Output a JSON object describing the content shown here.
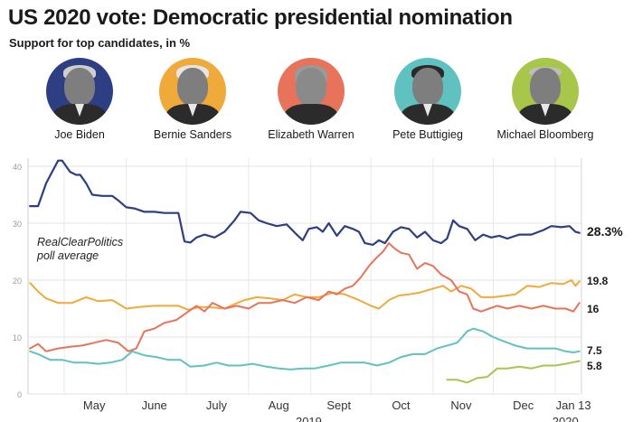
{
  "header": {
    "title": "US 2020 vote: Democratic presidential nomination",
    "subtitle": "Support for top candidates, in %"
  },
  "candidates": [
    {
      "name": "Joe Biden",
      "color": "#2d3f82"
    },
    {
      "name": "Bernie Sanders",
      "color": "#efaa3a"
    },
    {
      "name": "Elizabeth Warren",
      "color": "#e8735b"
    },
    {
      "name": "Pete Buttigieg",
      "color": "#5fc2c1"
    },
    {
      "name": "Michael Bloomberg",
      "color": "#a7c64a"
    }
  ],
  "annotation": {
    "line1": "RealClearPolitics",
    "line2": "poll average"
  },
  "chart_data": {
    "type": "line",
    "y_ticks": [
      "0",
      "10",
      "20",
      "30",
      "40"
    ],
    "ylim": [
      0,
      42
    ],
    "x_labels": [
      "May",
      "June",
      "July",
      "Aug",
      "Sept",
      "Oct",
      "Nov",
      "Dec",
      "Jan 13"
    ],
    "year_labels": [
      "2019",
      "2020"
    ],
    "grid": true,
    "series": [
      {
        "name": "Joe Biden",
        "color": "#2d3f82",
        "end_label": "28.3%",
        "points": [
          [
            "2019-04-14",
            33
          ],
          [
            "2019-04-18",
            33
          ],
          [
            "2019-04-22",
            37
          ],
          [
            "2019-04-25",
            39
          ],
          [
            "2019-04-28",
            41
          ],
          [
            "2019-04-30",
            41
          ],
          [
            "2019-05-02",
            40
          ],
          [
            "2019-05-04",
            39
          ],
          [
            "2019-05-07",
            38.5
          ],
          [
            "2019-05-09",
            38.5
          ],
          [
            "2019-05-12",
            37
          ],
          [
            "2019-05-15",
            35
          ],
          [
            "2019-05-20",
            34.8
          ],
          [
            "2019-05-25",
            34.8
          ],
          [
            "2019-05-28",
            34
          ],
          [
            "2019-06-01",
            32.8
          ],
          [
            "2019-06-05",
            32.6
          ],
          [
            "2019-06-10",
            32
          ],
          [
            "2019-06-15",
            32
          ],
          [
            "2019-06-20",
            31.8
          ],
          [
            "2019-06-27",
            31.8
          ],
          [
            "2019-06-30",
            26.8
          ],
          [
            "2019-07-03",
            26.6
          ],
          [
            "2019-07-06",
            27.5
          ],
          [
            "2019-07-10",
            28
          ],
          [
            "2019-07-15",
            27.5
          ],
          [
            "2019-07-20",
            28.5
          ],
          [
            "2019-07-25",
            30.5
          ],
          [
            "2019-07-28",
            32
          ],
          [
            "2019-08-02",
            31.8
          ],
          [
            "2019-08-06",
            30.5
          ],
          [
            "2019-08-10",
            30
          ],
          [
            "2019-08-15",
            29.5
          ],
          [
            "2019-08-20",
            29.8
          ],
          [
            "2019-08-25",
            28
          ],
          [
            "2019-08-28",
            27
          ],
          [
            "2019-08-31",
            29
          ],
          [
            "2019-09-04",
            29.3
          ],
          [
            "2019-09-07",
            28.5
          ],
          [
            "2019-09-10",
            30
          ],
          [
            "2019-09-14",
            27.8
          ],
          [
            "2019-09-18",
            29.5
          ],
          [
            "2019-09-22",
            29
          ],
          [
            "2019-09-25",
            28.5
          ],
          [
            "2019-09-28",
            26.5
          ],
          [
            "2019-10-02",
            26.2
          ],
          [
            "2019-10-05",
            27
          ],
          [
            "2019-10-08",
            26.5
          ],
          [
            "2019-10-12",
            28.5
          ],
          [
            "2019-10-16",
            29.3
          ],
          [
            "2019-10-20",
            29
          ],
          [
            "2019-10-24",
            27.5
          ],
          [
            "2019-10-28",
            28.5
          ],
          [
            "2019-11-01",
            27
          ],
          [
            "2019-11-05",
            26.5
          ],
          [
            "2019-11-08",
            27.3
          ],
          [
            "2019-11-11",
            30.5
          ],
          [
            "2019-11-14",
            29.5
          ],
          [
            "2019-11-18",
            29
          ],
          [
            "2019-11-22",
            27
          ],
          [
            "2019-11-26",
            28
          ],
          [
            "2019-11-30",
            27.5
          ],
          [
            "2019-12-04",
            27.8
          ],
          [
            "2019-12-08",
            27.3
          ],
          [
            "2019-12-14",
            28
          ],
          [
            "2019-12-20",
            28
          ],
          [
            "2019-12-26",
            28.8
          ],
          [
            "2019-12-30",
            29.5
          ],
          [
            "2020-01-04",
            29.3
          ],
          [
            "2020-01-08",
            29.5
          ],
          [
            "2020-01-11",
            28.5
          ],
          [
            "2020-01-13",
            28.3
          ]
        ]
      },
      {
        "name": "Bernie Sanders",
        "color": "#efaa3a",
        "end_label": "19.8",
        "points": [
          [
            "2019-04-14",
            19.5
          ],
          [
            "2019-04-18",
            18
          ],
          [
            "2019-04-22",
            16.8
          ],
          [
            "2019-04-28",
            16
          ],
          [
            "2019-05-05",
            16
          ],
          [
            "2019-05-12",
            17
          ],
          [
            "2019-05-18",
            16.3
          ],
          [
            "2019-05-25",
            16.5
          ],
          [
            "2019-06-01",
            15
          ],
          [
            "2019-06-08",
            15.3
          ],
          [
            "2019-06-15",
            15.5
          ],
          [
            "2019-06-22",
            15.5
          ],
          [
            "2019-06-27",
            15.5
          ],
          [
            "2019-07-02",
            14.8
          ],
          [
            "2019-07-08",
            15.3
          ],
          [
            "2019-07-14",
            15.2
          ],
          [
            "2019-07-20",
            15
          ],
          [
            "2019-07-25",
            15.8
          ],
          [
            "2019-07-30",
            16.5
          ],
          [
            "2019-08-05",
            17
          ],
          [
            "2019-08-12",
            16.8
          ],
          [
            "2019-08-18",
            16.5
          ],
          [
            "2019-08-24",
            17.5
          ],
          [
            "2019-08-30",
            17
          ],
          [
            "2019-09-05",
            17
          ],
          [
            "2019-09-12",
            17.8
          ],
          [
            "2019-09-18",
            17.5
          ],
          [
            "2019-09-25",
            16.5
          ],
          [
            "2019-10-01",
            15.5
          ],
          [
            "2019-10-05",
            15
          ],
          [
            "2019-10-10",
            16.5
          ],
          [
            "2019-10-15",
            17.3
          ],
          [
            "2019-10-20",
            17.5
          ],
          [
            "2019-10-25",
            17.8
          ],
          [
            "2019-11-01",
            18.5
          ],
          [
            "2019-11-06",
            19
          ],
          [
            "2019-11-10",
            18
          ],
          [
            "2019-11-15",
            19
          ],
          [
            "2019-11-20",
            18.5
          ],
          [
            "2019-11-25",
            17
          ],
          [
            "2019-12-01",
            17
          ],
          [
            "2019-12-06",
            17.2
          ],
          [
            "2019-12-12",
            17.5
          ],
          [
            "2019-12-18",
            19
          ],
          [
            "2019-12-24",
            18.8
          ],
          [
            "2019-12-30",
            19.5
          ],
          [
            "2020-01-05",
            19.3
          ],
          [
            "2020-01-09",
            20
          ],
          [
            "2020-01-11",
            19
          ],
          [
            "2020-01-13",
            19.8
          ]
        ]
      },
      {
        "name": "Elizabeth Warren",
        "color": "#e8735b",
        "end_label": "16",
        "points": [
          [
            "2019-04-14",
            8
          ],
          [
            "2019-04-18",
            8.8
          ],
          [
            "2019-04-22",
            7.5
          ],
          [
            "2019-04-28",
            8
          ],
          [
            "2019-05-04",
            8.3
          ],
          [
            "2019-05-10",
            8.5
          ],
          [
            "2019-05-16",
            9
          ],
          [
            "2019-05-22",
            9.5
          ],
          [
            "2019-05-28",
            9
          ],
          [
            "2019-06-02",
            7.5
          ],
          [
            "2019-06-06",
            8
          ],
          [
            "2019-06-10",
            11
          ],
          [
            "2019-06-15",
            11.5
          ],
          [
            "2019-06-20",
            12.5
          ],
          [
            "2019-06-26",
            13
          ],
          [
            "2019-07-02",
            14.5
          ],
          [
            "2019-07-06",
            15.5
          ],
          [
            "2019-07-10",
            14.5
          ],
          [
            "2019-07-14",
            16
          ],
          [
            "2019-07-20",
            15
          ],
          [
            "2019-07-26",
            15.5
          ],
          [
            "2019-08-01",
            15
          ],
          [
            "2019-08-06",
            16
          ],
          [
            "2019-08-12",
            16
          ],
          [
            "2019-08-18",
            16.5
          ],
          [
            "2019-08-24",
            16
          ],
          [
            "2019-08-30",
            17
          ],
          [
            "2019-09-05",
            16.5
          ],
          [
            "2019-09-10",
            18
          ],
          [
            "2019-09-14",
            17.5
          ],
          [
            "2019-09-18",
            18.5
          ],
          [
            "2019-09-22",
            19
          ],
          [
            "2019-09-26",
            20.5
          ],
          [
            "2019-09-30",
            22.5
          ],
          [
            "2019-10-04",
            24
          ],
          [
            "2019-10-07",
            25
          ],
          [
            "2019-10-10",
            26.5
          ],
          [
            "2019-10-13",
            25.5
          ],
          [
            "2019-10-16",
            24.8
          ],
          [
            "2019-10-20",
            24.5
          ],
          [
            "2019-10-24",
            22
          ],
          [
            "2019-10-28",
            23
          ],
          [
            "2019-11-01",
            22.5
          ],
          [
            "2019-11-05",
            21
          ],
          [
            "2019-11-10",
            20
          ],
          [
            "2019-11-14",
            18
          ],
          [
            "2019-11-18",
            17.5
          ],
          [
            "2019-11-21",
            15
          ],
          [
            "2019-11-25",
            14.5
          ],
          [
            "2019-11-29",
            15
          ],
          [
            "2019-12-03",
            15.5
          ],
          [
            "2019-12-08",
            15
          ],
          [
            "2019-12-14",
            15.5
          ],
          [
            "2019-12-20",
            15
          ],
          [
            "2019-12-26",
            15.5
          ],
          [
            "2020-01-01",
            15
          ],
          [
            "2020-01-06",
            15
          ],
          [
            "2020-01-10",
            14.5
          ],
          [
            "2020-01-13",
            16
          ]
        ]
      },
      {
        "name": "Pete Buttigieg",
        "color": "#5fc2c1",
        "end_label": "7.5",
        "points": [
          [
            "2019-04-14",
            7.5
          ],
          [
            "2019-04-18",
            7
          ],
          [
            "2019-04-24",
            6
          ],
          [
            "2019-04-30",
            6
          ],
          [
            "2019-05-06",
            5.5
          ],
          [
            "2019-05-12",
            5.5
          ],
          [
            "2019-05-18",
            5.3
          ],
          [
            "2019-05-24",
            5.5
          ],
          [
            "2019-05-30",
            6
          ],
          [
            "2019-06-04",
            7.5
          ],
          [
            "2019-06-10",
            6.8
          ],
          [
            "2019-06-16",
            6.5
          ],
          [
            "2019-06-22",
            6
          ],
          [
            "2019-06-28",
            6
          ],
          [
            "2019-07-03",
            4.8
          ],
          [
            "2019-07-10",
            5
          ],
          [
            "2019-07-16",
            5.5
          ],
          [
            "2019-07-22",
            5
          ],
          [
            "2019-07-28",
            5
          ],
          [
            "2019-08-03",
            5.3
          ],
          [
            "2019-08-10",
            4.8
          ],
          [
            "2019-08-16",
            4.5
          ],
          [
            "2019-08-22",
            4.3
          ],
          [
            "2019-08-28",
            4.5
          ],
          [
            "2019-09-03",
            4.5
          ],
          [
            "2019-09-10",
            5
          ],
          [
            "2019-09-16",
            5.5
          ],
          [
            "2019-09-22",
            5.5
          ],
          [
            "2019-09-28",
            5.5
          ],
          [
            "2019-10-04",
            5
          ],
          [
            "2019-10-10",
            5.5
          ],
          [
            "2019-10-16",
            6.5
          ],
          [
            "2019-10-22",
            7
          ],
          [
            "2019-10-28",
            7
          ],
          [
            "2019-11-03",
            8
          ],
          [
            "2019-11-08",
            8.5
          ],
          [
            "2019-11-13",
            9
          ],
          [
            "2019-11-18",
            11
          ],
          [
            "2019-11-21",
            11.5
          ],
          [
            "2019-11-26",
            11
          ],
          [
            "2019-12-01",
            10
          ],
          [
            "2019-12-06",
            9.3
          ],
          [
            "2019-12-12",
            8.5
          ],
          [
            "2019-12-18",
            8
          ],
          [
            "2019-12-24",
            8
          ],
          [
            "2020-01-01",
            8
          ],
          [
            "2020-01-06",
            7.5
          ],
          [
            "2020-01-10",
            7.3
          ],
          [
            "2020-01-13",
            7.5
          ]
        ]
      },
      {
        "name": "Michael Bloomberg",
        "color": "#a7c64a",
        "end_label": "5.8",
        "points": [
          [
            "2019-11-08",
            2.5
          ],
          [
            "2019-11-13",
            2.5
          ],
          [
            "2019-11-18",
            2
          ],
          [
            "2019-11-23",
            2.8
          ],
          [
            "2019-11-28",
            3
          ],
          [
            "2019-12-03",
            4.5
          ],
          [
            "2019-12-08",
            4.5
          ],
          [
            "2019-12-14",
            4.8
          ],
          [
            "2019-12-20",
            4.5
          ],
          [
            "2019-12-26",
            5
          ],
          [
            "2020-01-01",
            5
          ],
          [
            "2020-01-06",
            5.3
          ],
          [
            "2020-01-09",
            5.5
          ],
          [
            "2020-01-13",
            5.8
          ]
        ]
      }
    ]
  }
}
